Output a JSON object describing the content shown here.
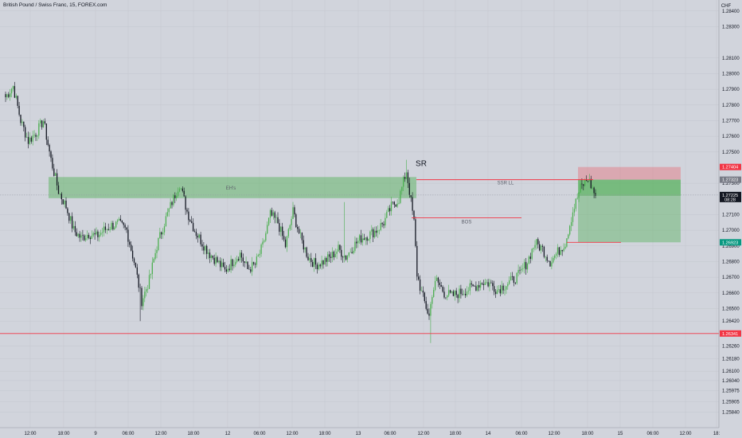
{
  "chart_data": {
    "type": "candlestick",
    "title": "British Pound / Swiss Franc, 15, FOREX.com",
    "currency_label": "CHF",
    "y_range": [
      1.2575,
      1.2846
    ],
    "grid": true,
    "y_ticks": [
      "1.28400",
      "1.28300",
      "1.28100",
      "1.28000",
      "1.27900",
      "1.27800",
      "1.27700",
      "1.27600",
      "1.27500",
      "1.27300",
      "1.27100",
      "1.27000",
      "1.26900",
      "1.26800",
      "1.26700",
      "1.26600",
      "1.26500",
      "1.26420",
      "1.26260",
      "1.26180",
      "1.26100",
      "1.26040",
      "1.25975",
      "1.25905",
      "1.25840"
    ],
    "x_ticks": [
      "12:00",
      "18:00",
      "9",
      "06:00",
      "12:00",
      "18:00",
      "12",
      "06:00",
      "12:00",
      "18:00",
      "13",
      "06:00",
      "12:00",
      "18:00",
      "14",
      "06:00",
      "12:00",
      "18:00",
      "15",
      "06:00",
      "12:00",
      "18:"
    ],
    "levels": [
      {
        "label": "1.27404",
        "value": 1.27404,
        "color": "#f23645"
      },
      {
        "label": "1.27323",
        "value": 1.27323,
        "color": "#787b86"
      },
      {
        "label": "1.27225",
        "value": 1.27225,
        "color": "#131722",
        "sub": "08:28"
      },
      {
        "label": "1.26923",
        "value": 1.26923,
        "color": "#089981"
      },
      {
        "label": "1.26341",
        "value": 1.26341,
        "color": "#f23645"
      }
    ],
    "annotations": [
      "EH's",
      "SR",
      "SSR LL",
      "BOS"
    ],
    "current_price": 1.27225,
    "entry_price": 1.27323,
    "stop_price": 1.27404,
    "target_price": 1.26923,
    "red_support_line": 1.26341,
    "bos_level": 1.2708,
    "demand_zone": [
      1.2722,
      1.27323
    ],
    "waypoints": [
      [
        0,
        1.2785
      ],
      [
        5,
        1.2792
      ],
      [
        10,
        1.277
      ],
      [
        15,
        1.2757
      ],
      [
        20,
        1.2762
      ],
      [
        25,
        1.277
      ],
      [
        30,
        1.2745
      ],
      [
        35,
        1.2725
      ],
      [
        40,
        1.2715
      ],
      [
        45,
        1.27
      ],
      [
        50,
        1.2695
      ],
      [
        55,
        1.2698
      ],
      [
        60,
        1.2696
      ],
      [
        65,
        1.27
      ],
      [
        70,
        1.2703
      ],
      [
        75,
        1.2704
      ],
      [
        80,
        1.27
      ],
      [
        85,
        1.268
      ],
      [
        90,
        1.2655
      ],
      [
        95,
        1.2668
      ],
      [
        100,
        1.269
      ],
      [
        105,
        1.2705
      ],
      [
        110,
        1.2718
      ],
      [
        115,
        1.273
      ],
      [
        120,
        1.2712
      ],
      [
        125,
        1.27
      ],
      [
        130,
        1.2692
      ],
      [
        135,
        1.2685
      ],
      [
        140,
        1.268
      ],
      [
        145,
        1.2674
      ],
      [
        150,
        1.268
      ],
      [
        155,
        1.2685
      ],
      [
        160,
        1.2675
      ],
      [
        165,
        1.2678
      ],
      [
        170,
        1.269
      ],
      [
        175,
        1.271
      ],
      [
        180,
        1.2705
      ],
      [
        185,
        1.269
      ],
      [
        190,
        1.2712
      ],
      [
        195,
        1.2695
      ],
      [
        200,
        1.2683
      ],
      [
        205,
        1.2678
      ],
      [
        210,
        1.268
      ],
      [
        215,
        1.2683
      ],
      [
        220,
        1.2688
      ],
      [
        225,
        1.2683
      ],
      [
        230,
        1.269
      ],
      [
        235,
        1.2695
      ],
      [
        240,
        1.2697
      ],
      [
        245,
        1.27
      ],
      [
        250,
        1.2705
      ],
      [
        255,
        1.2715
      ],
      [
        260,
        1.272
      ],
      [
        265,
        1.2738
      ],
      [
        270,
        1.2705
      ],
      [
        272,
        1.2672
      ],
      [
        275,
        1.266
      ],
      [
        280,
        1.2645
      ],
      [
        282,
        1.266
      ],
      [
        285,
        1.2668
      ],
      [
        290,
        1.266
      ],
      [
        295,
        1.2658
      ],
      [
        300,
        1.266
      ],
      [
        305,
        1.2662
      ],
      [
        310,
        1.2664
      ],
      [
        315,
        1.2667
      ],
      [
        320,
        1.2666
      ],
      [
        325,
        1.2662
      ],
      [
        330,
        1.2665
      ],
      [
        335,
        1.2668
      ],
      [
        340,
        1.2672
      ],
      [
        345,
        1.268
      ],
      [
        350,
        1.2692
      ],
      [
        355,
        1.2688
      ],
      [
        360,
        1.268
      ],
      [
        365,
        1.2686
      ],
      [
        370,
        1.2692
      ],
      [
        375,
        1.2712
      ],
      [
        380,
        1.2727
      ],
      [
        385,
        1.2733
      ],
      [
        390,
        1.2722
      ]
    ]
  }
}
